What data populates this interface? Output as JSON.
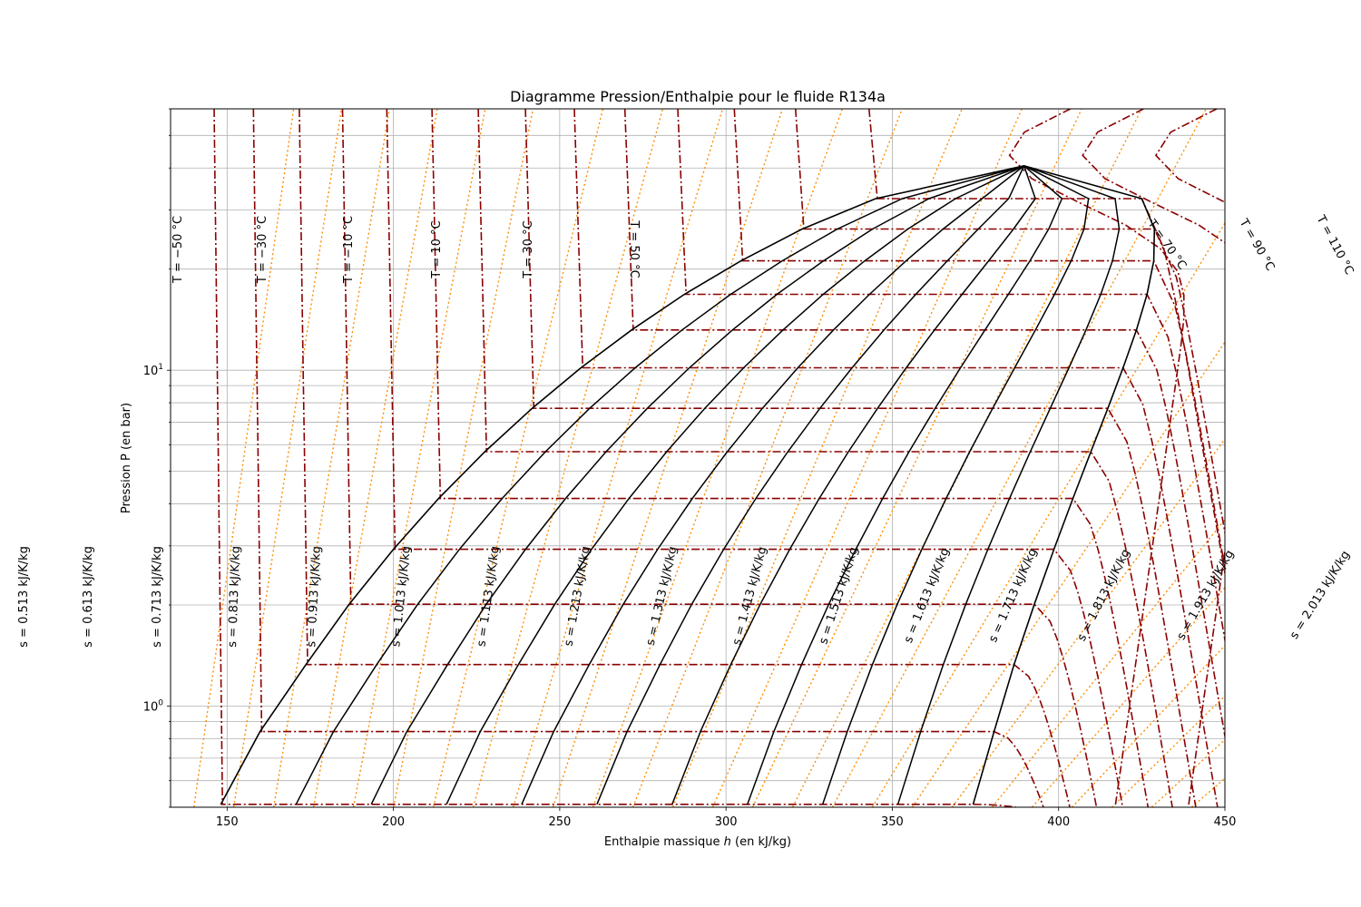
{
  "chart_data": {
    "type": "line",
    "title": "Diagramme Pression/Enthalpie pour le fluide R134a",
    "xlabel_prefix": "Enthalpie massique ",
    "xlabel_var": "h",
    "xlabel_suffix": " (en kJ/kg)",
    "ylabel": "Pression P (en bar)",
    "xlim": [
      133,
      450
    ],
    "ylim": [
      0.5,
      60
    ],
    "yscale": "log",
    "grid": true,
    "x_ticks": [
      {
        "value": 150,
        "label": "150"
      },
      {
        "value": 200,
        "label": "200"
      },
      {
        "value": 250,
        "label": "250"
      },
      {
        "value": 300,
        "label": "300"
      },
      {
        "value": 350,
        "label": "350"
      },
      {
        "value": 400,
        "label": "400"
      },
      {
        "value": 450,
        "label": "450"
      }
    ],
    "y_ticks": [
      {
        "value": 1,
        "base": "10",
        "exp": "0"
      },
      {
        "value": 10,
        "base": "10",
        "exp": "1"
      }
    ],
    "saturation_dome": {
      "color": "#000000",
      "critical_point": {
        "h": 389.6,
        "P": 40.6
      },
      "liquid": [
        {
          "h": 148.1,
          "P": 0.51
        },
        {
          "h": 159.9,
          "P": 0.84
        },
        {
          "h": 173.7,
          "P": 1.33
        },
        {
          "h": 186.7,
          "P": 2.01
        },
        {
          "h": 200.0,
          "P": 2.93
        },
        {
          "h": 213.6,
          "P": 4.15
        },
        {
          "h": 227.5,
          "P": 5.72
        },
        {
          "h": 241.7,
          "P": 7.7
        },
        {
          "h": 256.4,
          "P": 10.17
        },
        {
          "h": 271.6,
          "P": 13.18
        },
        {
          "h": 287.5,
          "P": 16.82
        },
        {
          "h": 304.5,
          "P": 21.17
        },
        {
          "h": 322.9,
          "P": 26.33
        },
        {
          "h": 345.0,
          "P": 32.43
        },
        {
          "h": 389.6,
          "P": 40.6
        }
      ],
      "vapor": [
        {
          "h": 374.3,
          "P": 0.51
        },
        {
          "h": 380.6,
          "P": 0.84
        },
        {
          "h": 386.6,
          "P": 1.33
        },
        {
          "h": 392.7,
          "P": 2.01
        },
        {
          "h": 398.6,
          "P": 2.93
        },
        {
          "h": 404.3,
          "P": 4.15
        },
        {
          "h": 409.7,
          "P": 5.72
        },
        {
          "h": 414.8,
          "P": 7.7
        },
        {
          "h": 419.4,
          "P": 10.17
        },
        {
          "h": 423.4,
          "P": 13.18
        },
        {
          "h": 426.6,
          "P": 16.82
        },
        {
          "h": 428.6,
          "P": 21.17
        },
        {
          "h": 428.8,
          "P": 26.33
        },
        {
          "h": 425.0,
          "P": 32.43
        },
        {
          "h": 389.6,
          "P": 40.6
        }
      ]
    },
    "isotherms": {
      "color": "#8b0000",
      "style": "dash-dot",
      "temperatures_C": [
        -50,
        -40,
        -30,
        -20,
        -10,
        0,
        10,
        20,
        30,
        40,
        50,
        60,
        70,
        80,
        90,
        100,
        110,
        120
      ],
      "labels": [
        {
          "text": "T = −50 °C"
        },
        {
          "text": "T = −30 °C"
        },
        {
          "text": "T = −10 °C"
        },
        {
          "text": "T = 10 °C"
        },
        {
          "text": "T = 30 °C"
        },
        {
          "text": "T = 50 °C"
        },
        {
          "text": "T = 70 °C"
        },
        {
          "text": "T = 90 °C"
        },
        {
          "text": "T = 110 °C"
        }
      ]
    },
    "isentropes": {
      "color": "#ff8c00",
      "style": "dotted",
      "labels": [
        {
          "text": "s = 0.513 kJ/K/kg"
        },
        {
          "text": "s = 0.613 kJ/K/kg"
        },
        {
          "text": "s = 0.713 kJ/K/kg"
        },
        {
          "text": "s = 0.813 kJ/K/kg"
        },
        {
          "text": "s = 0.913 kJ/K/kg"
        },
        {
          "text": "s = 1.013 kJ/K/kg"
        },
        {
          "text": "s = 1.113 kJ/K/kg"
        },
        {
          "text": "s = 1.213 kJ/K/kg"
        },
        {
          "text": "s = 1.313 kJ/K/kg"
        },
        {
          "text": "s = 1.413 kJ/K/kg"
        },
        {
          "text": "s = 1.513 kJ/K/kg"
        },
        {
          "text": "s = 1.613 kJ/K/kg"
        },
        {
          "text": "s = 1.713 kJ/K/kg"
        },
        {
          "text": "s = 1.813 kJ/K/kg"
        },
        {
          "text": "s = 1.913 kJ/K/kg"
        },
        {
          "text": "s = 2.013 kJ/K/kg"
        }
      ]
    },
    "iso_quality": {
      "color": "#000000",
      "qualities": [
        0.1,
        0.2,
        0.3,
        0.4,
        0.5,
        0.6,
        0.7,
        0.8,
        0.9
      ]
    }
  }
}
